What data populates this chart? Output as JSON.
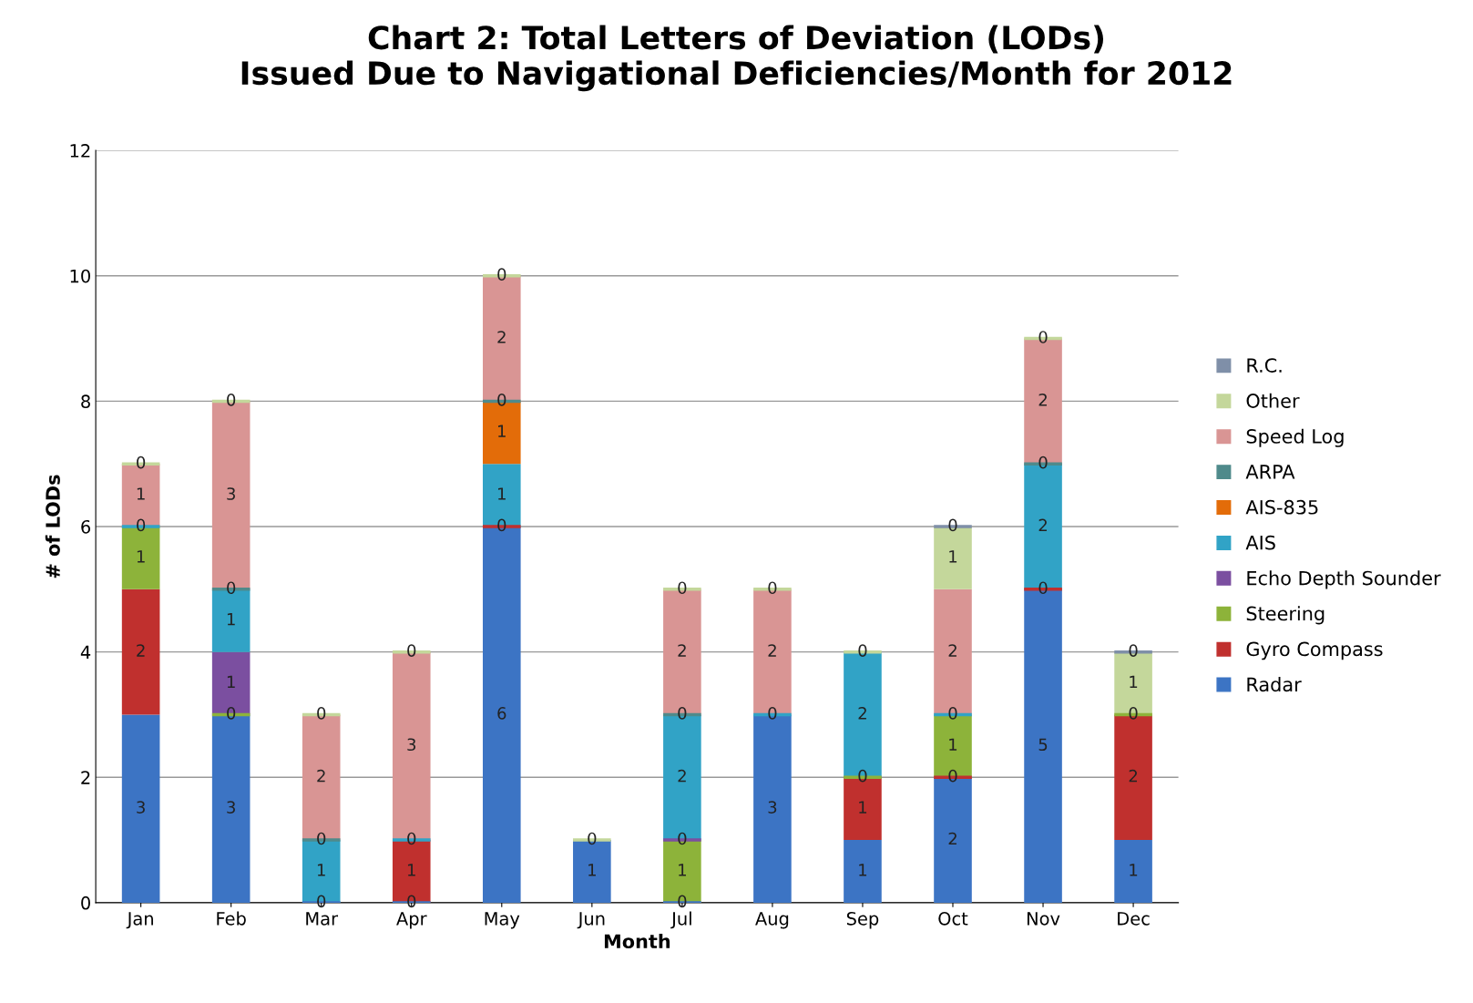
{
  "chart_data": {
    "type": "bar",
    "stacked": true,
    "title": "Chart 2: Total Letters of Deviation (LODs)\nIssued Due to Navigational Deficiencies/Month for 2012",
    "xlabel": "Month",
    "ylabel": "# of LODs",
    "categories": [
      "Jan",
      "Feb",
      "Mar",
      "Apr",
      "May",
      "Jun",
      "Jul",
      "Aug",
      "Sep",
      "Oct",
      "Nov",
      "Dec"
    ],
    "ylim": [
      0,
      12
    ],
    "yticks": [
      0,
      2,
      4,
      6,
      8,
      10,
      12
    ],
    "grid": "y",
    "legend": "right",
    "series": [
      {
        "name": "Radar",
        "color": "#3c74c4",
        "values": [
          3,
          3,
          0,
          0,
          6,
          1,
          0,
          3,
          1,
          2,
          5,
          1
        ],
        "value_labels": [
          "3",
          "3",
          "0",
          "0",
          "6",
          "1",
          "0",
          "3",
          "1",
          "2",
          "5",
          "1"
        ]
      },
      {
        "name": "Gyro Compass",
        "color": "#c0302e",
        "values": [
          2,
          null,
          null,
          1,
          0,
          null,
          null,
          null,
          1,
          0,
          0,
          2
        ],
        "value_labels": [
          "2",
          null,
          null,
          "1",
          "0",
          null,
          null,
          null,
          "1",
          "0",
          "0",
          "2"
        ]
      },
      {
        "name": "Steering",
        "color": "#8db33a",
        "values": [
          1,
          0,
          null,
          null,
          null,
          null,
          1,
          null,
          0,
          1,
          null,
          0
        ],
        "value_labels": [
          "1",
          "0",
          null,
          null,
          null,
          null,
          "1",
          null,
          "0",
          "1",
          null,
          "0"
        ]
      },
      {
        "name": "Echo Depth Sounder",
        "color": "#7b4fa0",
        "values": [
          null,
          1,
          null,
          null,
          null,
          null,
          0,
          null,
          null,
          null,
          null,
          null
        ],
        "value_labels": [
          null,
          "1",
          null,
          null,
          null,
          null,
          "0",
          null,
          null,
          null,
          null,
          null
        ]
      },
      {
        "name": "AIS",
        "color": "#31a3c6",
        "values": [
          0,
          1,
          1,
          0,
          1,
          null,
          2,
          0,
          2,
          0,
          2,
          null
        ],
        "value_labels": [
          "0",
          "1",
          "1",
          "0",
          "1",
          null,
          "2",
          "0",
          "2",
          "0",
          "2",
          null
        ]
      },
      {
        "name": "AIS-835",
        "color": "#e36c09",
        "values": [
          null,
          null,
          null,
          null,
          1,
          null,
          null,
          null,
          null,
          null,
          null,
          null
        ],
        "value_labels": [
          null,
          null,
          null,
          null,
          "1",
          null,
          null,
          null,
          null,
          null,
          null,
          null
        ]
      },
      {
        "name": "ARPA",
        "color": "#4f8a8b",
        "values": [
          null,
          0,
          0,
          null,
          0,
          null,
          0,
          null,
          null,
          null,
          0,
          null
        ],
        "value_labels": [
          null,
          "0",
          "0",
          null,
          "0",
          null,
          "0",
          null,
          null,
          null,
          "0",
          null
        ]
      },
      {
        "name": "Speed Log",
        "color": "#d99594",
        "values": [
          1,
          3,
          2,
          3,
          2,
          null,
          2,
          2,
          null,
          2,
          2,
          null
        ],
        "value_labels": [
          "1",
          "3",
          "2",
          "3",
          "2",
          null,
          "2",
          "2",
          null,
          "2",
          "2",
          null
        ]
      },
      {
        "name": "Other",
        "color": "#c4d79b",
        "values": [
          0,
          0,
          0,
          0,
          0,
          0,
          0,
          0,
          0,
          1,
          0,
          1
        ],
        "value_labels": [
          "0",
          "0",
          "0",
          "0",
          "0",
          "0",
          "0",
          "0",
          "0",
          "1",
          "0",
          "1"
        ]
      },
      {
        "name": "R.C.",
        "color": "#7f8fa8",
        "values": [
          null,
          null,
          null,
          null,
          null,
          null,
          null,
          null,
          null,
          0,
          null,
          0
        ],
        "value_labels": [
          null,
          null,
          null,
          null,
          null,
          null,
          null,
          null,
          null,
          "0",
          null,
          "0"
        ]
      }
    ]
  }
}
